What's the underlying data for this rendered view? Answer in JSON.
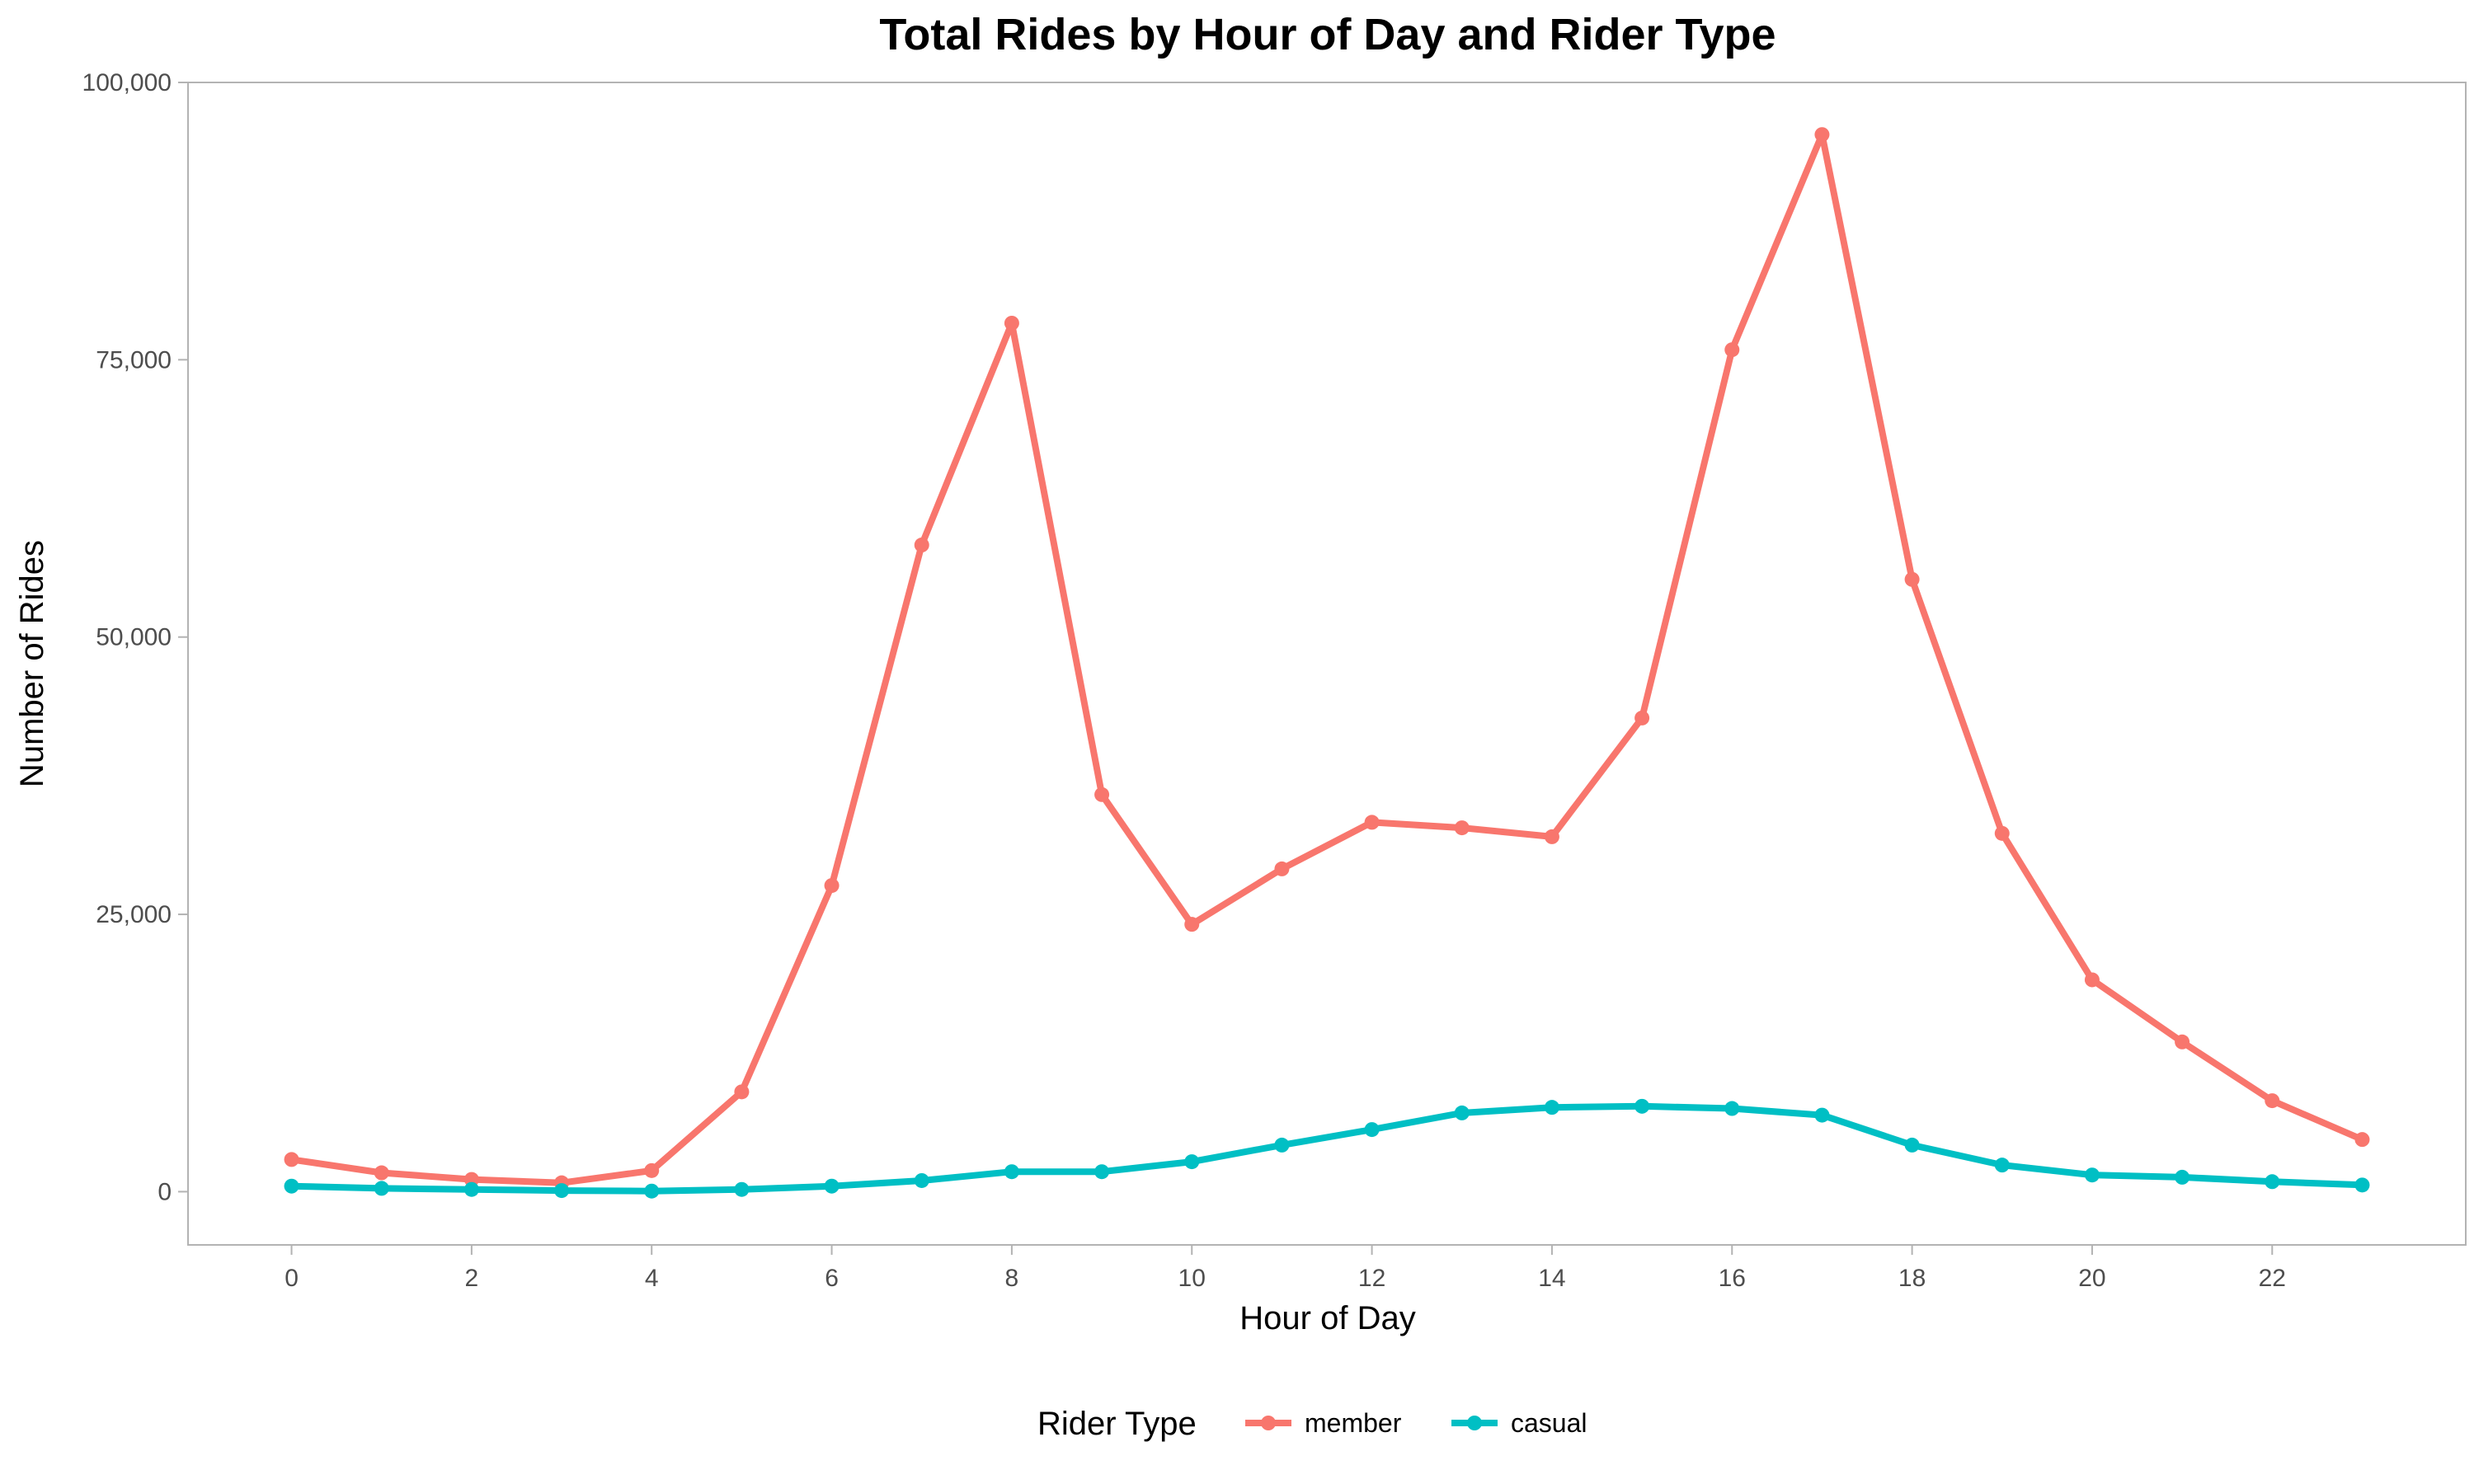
{
  "chart_data": {
    "type": "line",
    "title": "Total Rides by Hour of Day and Rider Type",
    "xlabel": "Hour of Day",
    "ylabel": "Number of Rides",
    "xlim": [
      -1.15,
      24.15
    ],
    "ylim": [
      -4800,
      100000
    ],
    "x_ticks": [
      0,
      2,
      4,
      6,
      8,
      10,
      12,
      14,
      16,
      18,
      20,
      22
    ],
    "y_ticks": [
      0,
      25000,
      50000,
      75000,
      100000
    ],
    "y_tick_labels": [
      "0",
      "25,000",
      "50,000",
      "75,000",
      "100,000"
    ],
    "x_tick_labels": [
      "0",
      "2",
      "4",
      "6",
      "8",
      "10",
      "12",
      "14",
      "16",
      "18",
      "20",
      "22"
    ],
    "grid": false,
    "legend_title": "Rider Type",
    "legend_position": "bottom",
    "x": [
      0,
      1,
      2,
      3,
      4,
      5,
      6,
      7,
      8,
      9,
      10,
      11,
      12,
      13,
      14,
      15,
      16,
      17,
      18,
      19,
      20,
      21,
      22,
      23
    ],
    "series": [
      {
        "name": "member",
        "color": "#F8766D",
        "values": [
          2900,
          1700,
          1100,
          800,
          1900,
          9000,
          27600,
          58300,
          78300,
          35800,
          24100,
          29100,
          33300,
          32800,
          32000,
          42700,
          75900,
          95300,
          55200,
          32300,
          19100,
          13500,
          8200,
          4700
        ]
      },
      {
        "name": "casual",
        "color": "#00BFC4",
        "values": [
          500,
          300,
          200,
          100,
          50,
          200,
          500,
          1000,
          1800,
          1800,
          2700,
          4200,
          5600,
          7100,
          7600,
          7700,
          7500,
          6900,
          4200,
          2400,
          1500,
          1300,
          900,
          600
        ]
      }
    ]
  }
}
